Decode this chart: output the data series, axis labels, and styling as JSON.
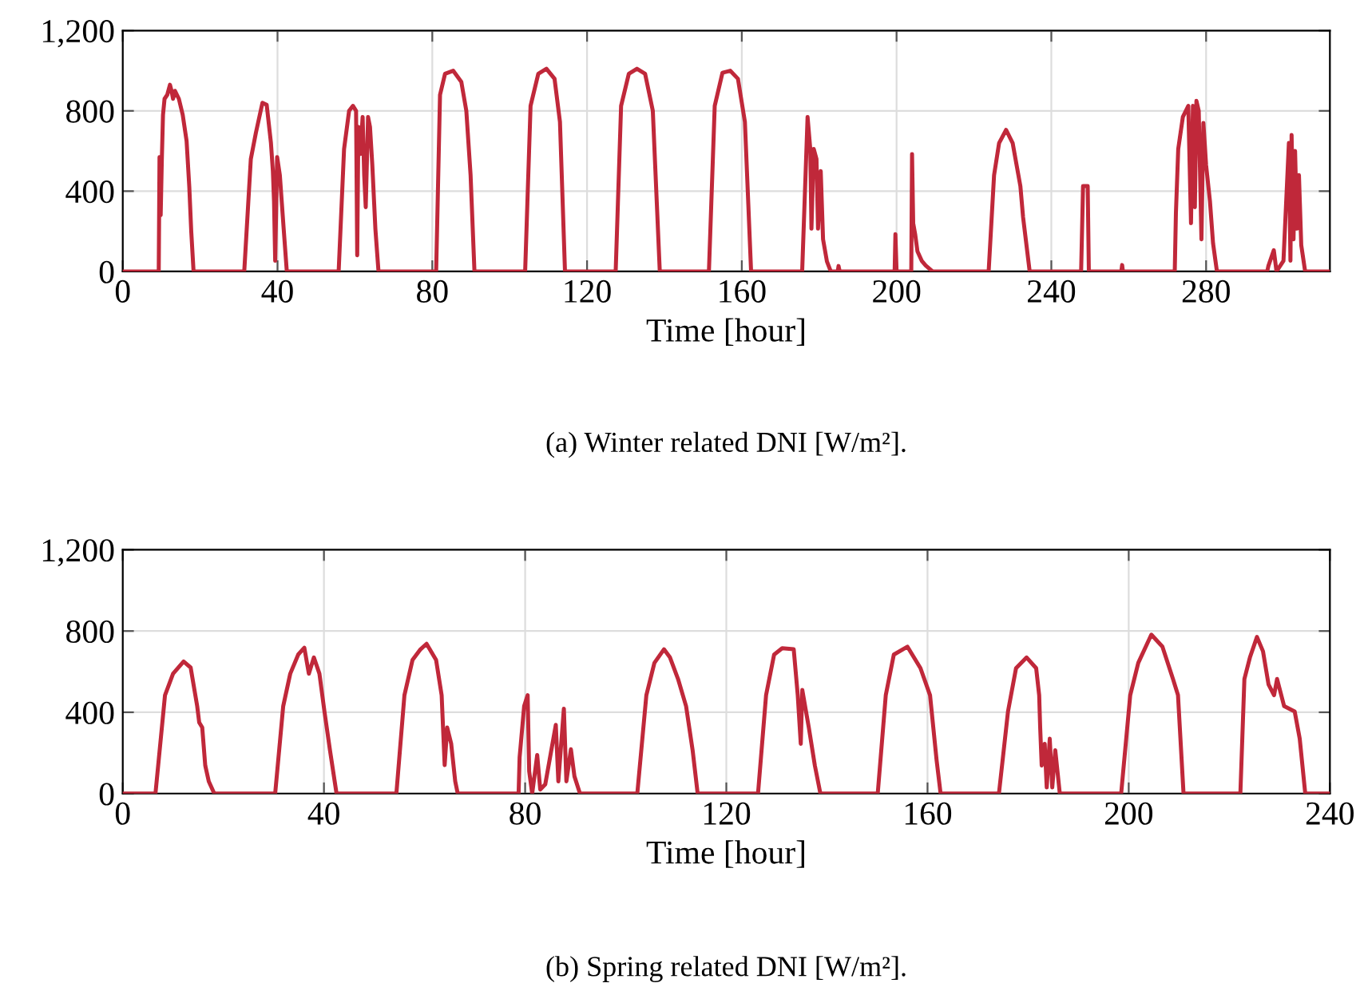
{
  "chart_data": [
    {
      "type": "line",
      "title": "(a) Winter related DNI [W/m²].",
      "xlabel": "Time [hour]",
      "xlim": [
        0,
        312
      ],
      "xticks": [
        0,
        40,
        80,
        120,
        160,
        200,
        240,
        280
      ],
      "ylim": [
        0,
        1200
      ],
      "yticks": [
        0,
        400,
        800,
        {
          "value": 1200,
          "label": "1,200"
        }
      ],
      "grid": true,
      "marker": "none",
      "line_style": "solid",
      "series": [
        {
          "color": "#c0283a",
          "x": [
            0,
            9.3,
            9.5,
            9.8,
            10.1,
            10.4,
            10.8,
            11.5,
            12.2,
            12.6,
            13,
            13.5,
            14.5,
            15.5,
            16.5,
            17.2,
            17.7,
            18.3,
            31.4,
            33.1,
            34.4,
            36.1,
            37.2,
            38.3,
            38.8,
            39.1,
            39.4,
            39.9,
            40.6,
            41.6,
            42.4,
            55.8,
            57.2,
            58.5,
            59.5,
            60.3,
            60.6,
            60.9,
            61.4,
            62,
            62.4,
            62.8,
            63.4,
            63.9,
            64.5,
            65.3,
            66.1,
            81,
            82,
            83.3,
            85.4,
            87.5,
            88.8,
            89.9,
            90.9,
            104,
            105.4,
            107.4,
            109.5,
            111.6,
            113,
            114.3,
            127.4,
            128.8,
            130.8,
            132.9,
            135,
            137,
            138.8,
            151.5,
            153,
            155,
            157,
            159,
            160.8,
            162.4,
            175.6,
            177,
            177.7,
            178,
            178.6,
            179.3,
            179.7,
            180.4,
            181,
            182,
            183,
            184.8,
            185,
            185.3,
            199.5,
            199.7,
            200,
            203.8,
            204,
            204.3,
            204.8,
            205.4,
            206.5,
            207.5,
            209.3,
            223.8,
            225.2,
            226.5,
            228.3,
            230,
            232,
            232.7,
            234.4,
            247.7,
            248.2,
            249.4,
            249.7,
            258.1,
            258.3,
            258.5,
            271.9,
            272.2,
            272.8,
            274,
            275.4,
            276.1,
            276.6,
            277.1,
            277.5,
            278.1,
            278.8,
            279.3,
            280,
            281,
            281.8,
            282.8,
            295.8,
            296.1,
            297.5,
            298.2,
            300,
            301.4,
            301.8,
            302.1,
            302.6,
            303,
            303.5,
            304,
            304.6,
            305.6,
            312
          ],
          "values": [
            0,
            0,
            570,
            280,
            560,
            780,
            860,
            880,
            930,
            900,
            860,
            900,
            860,
            780,
            650,
            420,
            200,
            0,
            0,
            560,
            690,
            840,
            830,
            640,
            500,
            346,
            53,
            570,
            480,
            210,
            0,
            0,
            610,
            800,
            825,
            800,
            80,
            720,
            585,
            770,
            480,
            320,
            770,
            720,
            530,
            210,
            0,
            0,
            880,
            985,
            1000,
            945,
            800,
            480,
            0,
            0,
            825,
            985,
            1010,
            960,
            745,
            0,
            0,
            825,
            985,
            1010,
            985,
            800,
            0,
            0,
            825,
            990,
            1000,
            960,
            745,
            0,
            0,
            770,
            610,
            213,
            610,
            560,
            213,
            500,
            160,
            50,
            0,
            0,
            27,
            0,
            0,
            186,
            0,
            0,
            585,
            240,
            186,
            100,
            53,
            30,
            0,
            0,
            480,
            640,
            705,
            640,
            425,
            270,
            0,
            0,
            425,
            425,
            0,
            0,
            32,
            0,
            0,
            290,
            610,
            770,
            825,
            240,
            825,
            320,
            850,
            800,
            160,
            740,
            530,
            350,
            140,
            0,
            0,
            27,
            106,
            0,
            53,
            640,
            53,
            680,
            160,
            600,
            213,
            480,
            130,
            0,
            0
          ]
        }
      ]
    },
    {
      "type": "line",
      "title": "(b) Spring related DNI [W/m²].",
      "xlabel": "Time [hour]",
      "xlim": [
        0,
        240
      ],
      "xticks": [
        0,
        40,
        80,
        120,
        160,
        200,
        240
      ],
      "ylim": [
        0,
        1200
      ],
      "yticks": [
        0,
        400,
        800,
        {
          "value": 1200,
          "label": "1,200"
        }
      ],
      "grid": true,
      "marker": "none",
      "line_style": "solid",
      "series": [
        {
          "color": "#c0283a",
          "x": [
            0,
            6.5,
            8.4,
            10,
            12.1,
            13.5,
            14.8,
            15.2,
            15.8,
            16.4,
            17.1,
            18.2,
            30.3,
            31.9,
            33.3,
            34.9,
            36.1,
            37,
            38,
            39.1,
            40.1,
            41.2,
            42.5,
            54.4,
            56,
            57.6,
            59.2,
            60.4,
            62.3,
            63.4,
            64,
            64.5,
            65.3,
            66.1,
            66.6,
            78.7,
            78.9,
            79.8,
            80.5,
            80.8,
            81.4,
            82.4,
            83,
            84,
            86.1,
            86.6,
            87.7,
            88.2,
            89.1,
            89.8,
            90.9,
            102.3,
            104.1,
            105.7,
            107.6,
            108.8,
            110.4,
            112,
            113.3,
            114.3,
            126.3,
            127.9,
            129.5,
            131.1,
            133.4,
            134.2,
            134.8,
            135.1,
            136.4,
            137.6,
            138.7,
            150.1,
            151.7,
            153.3,
            156,
            158.6,
            160.5,
            161.8,
            162.6,
            174.2,
            176,
            177.6,
            179.7,
            181.6,
            182.2,
            182.4,
            182.7,
            183.3,
            183.7,
            184.3,
            184.8,
            185.4,
            186.3,
            198.5,
            200.3,
            201.9,
            204.5,
            206.7,
            208.8,
            209.8,
            210.9,
            222.2,
            223,
            224.1,
            225.5,
            226.7,
            227.8,
            228.9,
            229.5,
            230.9,
            233,
            234,
            235.1,
            240
          ],
          "values": [
            0,
            0,
            484,
            590,
            650,
            620,
            430,
            350,
            325,
            138,
            60,
            0,
            0,
            430,
            590,
            685,
            718,
            590,
            670,
            590,
            404,
            213,
            0,
            0,
            484,
            657,
            710,
            737,
            657,
            484,
            140,
            325,
            245,
            60,
            0,
            0,
            178,
            430,
            484,
            110,
            0,
            190,
            20,
            45,
            338,
            60,
            418,
            60,
            218,
            85,
            0,
            0,
            484,
            643,
            710,
            670,
            564,
            430,
            213,
            0,
            0,
            484,
            684,
            715,
            710,
            484,
            245,
            510,
            325,
            138,
            0,
            0,
            484,
            684,
            723,
            617,
            484,
            165,
            0,
            0,
            404,
            617,
            670,
            617,
            484,
            325,
            138,
            245,
            30,
            270,
            30,
            213,
            0,
            0,
            484,
            643,
            782,
            723,
            564,
            484,
            0,
            0,
            564,
            670,
            771,
            700,
            537,
            484,
            564,
            430,
            404,
            270,
            0,
            0
          ]
        }
      ]
    }
  ]
}
